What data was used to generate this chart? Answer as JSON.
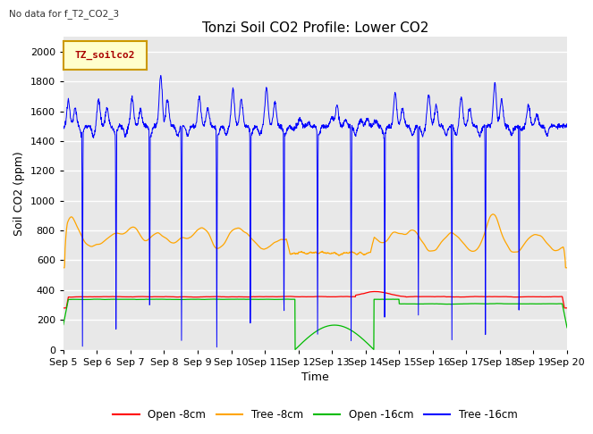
{
  "title": "Tonzi Soil CO2 Profile: Lower CO2",
  "subtitle": "No data for f_T2_CO2_3",
  "ylabel": "Soil CO2 (ppm)",
  "xlabel": "Time",
  "xlim_days": [
    5,
    20
  ],
  "ylim": [
    0,
    2100
  ],
  "yticks": [
    0,
    200,
    400,
    600,
    800,
    1000,
    1200,
    1400,
    1600,
    1800,
    2000
  ],
  "xtick_labels": [
    "Sep 5",
    "Sep 6",
    "Sep 7",
    "Sep 8",
    "Sep 9",
    "Sep 10",
    "Sep 11",
    "Sep 12",
    "Sep 13",
    "Sep 14",
    "Sep 15",
    "Sep 16",
    "Sep 17",
    "Sep 18",
    "Sep 19",
    "Sep 20"
  ],
  "legend_labels": [
    "Open -8cm",
    "Tree -8cm",
    "Open -16cm",
    "Tree -16cm"
  ],
  "legend_colors": [
    "#ff0000",
    "#ffa500",
    "#00bb00",
    "#0000ff"
  ],
  "inset_label": "TZ_soilco2",
  "plot_bg_color": "#e8e8e8",
  "grid_color": "#ffffff",
  "title_fontsize": 11,
  "axis_fontsize": 9,
  "tick_fontsize": 8
}
